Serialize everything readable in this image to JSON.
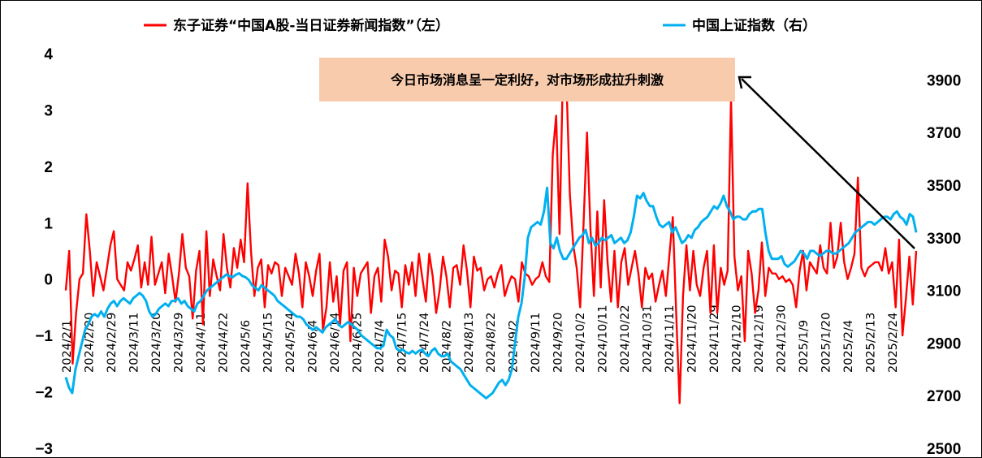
{
  "chart_data": {
    "type": "line",
    "x_tick_labels": [
      "2024/2/1",
      "2024/2/20",
      "2024/2/29",
      "2024/3/11",
      "2024/3/20",
      "2024/3/29",
      "2024/4/11",
      "2024/4/22",
      "2024/5/6",
      "2024/5/15",
      "2024/5/24",
      "2024/6/4",
      "2024/6/14",
      "2024/6/25",
      "2024/7/4",
      "2024/7/15",
      "2024/7/24",
      "2024/8/2",
      "2024/8/13",
      "2024/8/22",
      "2024/9/2",
      "2024/9/11",
      "2024/9/20",
      "2024/10/2",
      "2024/10/11",
      "2024/10/22",
      "2024/10/31",
      "2024/11/11",
      "2024/11/20",
      "2024/11/29",
      "2024/12/10",
      "2024/12/19",
      "2024/12/30",
      "2025/1/9",
      "2025/1/20",
      "2025/2/4",
      "2025/2/13",
      "2025/2/24"
    ],
    "y_left": {
      "ticks": [
        "4",
        "3",
        "2",
        "1",
        "0",
        "−1",
        "−2",
        "−3"
      ],
      "lim": [
        -3,
        4
      ]
    },
    "y_right": {
      "ticks": [
        "3900",
        "3700",
        "3500",
        "3300",
        "3100",
        "2900",
        "2700",
        "2500"
      ],
      "lim": [
        2500,
        4000
      ]
    },
    "series": [
      {
        "name": "东子证券“中国A股-当日证券新闻指数”（左）",
        "axis": "left",
        "color": "#ff0000",
        "values": [
          -0.2,
          0.5,
          -1.5,
          -0.6,
          0.0,
          0.1,
          1.15,
          0.5,
          -0.3,
          0.3,
          0.05,
          -0.2,
          0.2,
          0.6,
          0.85,
          0.0,
          -0.1,
          -0.2,
          0.3,
          0.15,
          0.35,
          0.6,
          -0.15,
          0.3,
          -0.1,
          0.75,
          -0.1,
          0.1,
          0.3,
          -0.25,
          0.45,
          0.05,
          -0.4,
          0.1,
          0.8,
          0.2,
          0.05,
          -0.7,
          0.15,
          0.5,
          -0.8,
          0.85,
          -0.3,
          0.35,
          0.05,
          -0.2,
          0.8,
          0.2,
          -0.15,
          0.55,
          0.2,
          0.7,
          0.3,
          1.7,
          0.5,
          -0.3,
          0.2,
          0.35,
          -0.5,
          0.25,
          0.1,
          0.3,
          0.25,
          -0.3,
          0.2,
          0.05,
          -0.1,
          0.45,
          0.1,
          -0.5,
          0.3,
          0.05,
          -0.3,
          0.15,
          0.45,
          -0.9,
          -0.5,
          0.3,
          -0.4,
          0.05,
          -0.8,
          0.15,
          0.3,
          -1.1,
          0.2,
          -0.3,
          0.1,
          0.2,
          0.3,
          -0.6,
          0.05,
          0.2,
          -0.4,
          0.7,
          0.4,
          -0.2,
          0.15,
          0.1,
          -0.5,
          0.25,
          -0.1,
          0.3,
          -0.3,
          0.45,
          0.0,
          -0.4,
          0.45,
          0.05,
          -0.6,
          -0.2,
          0.4,
          0.05,
          -0.5,
          0.2,
          0.25,
          -0.1,
          0.6,
          0.15,
          -0.5,
          0.4,
          0.15,
          0.2,
          -0.2,
          0.0,
          0.05,
          -0.15,
          0.1,
          0.25,
          -0.3,
          -0.1,
          0.05,
          0.0,
          -0.4,
          0.3,
          0.1,
          0.05,
          -0.1,
          0.0,
          0.05,
          0.3,
          0.05,
          -0.05,
          2.2,
          2.9,
          0.8,
          3.8,
          3.5,
          1.5,
          0.6,
          0.2,
          -0.5,
          1.0,
          2.6,
          0.9,
          -0.3,
          1.2,
          -0.15,
          1.4,
          0.3,
          -0.4,
          0.5,
          -0.5,
          0.3,
          0.55,
          -0.1,
          0.2,
          0.5,
          0.1,
          -0.5,
          0.2,
          0.0,
          0.1,
          -0.4,
          -0.1,
          0.15,
          -0.3,
          0.4,
          1.1,
          -0.6,
          -2.2,
          -0.3,
          0.6,
          -0.2,
          0.5,
          -0.1,
          -0.3,
          0.2,
          0.5,
          -0.6,
          0.6,
          -0.6,
          0.2,
          -0.1,
          0.15,
          3.2,
          0.4,
          -0.2,
          0.05,
          -1.1,
          0.5,
          0.1,
          -0.6,
          -0.2,
          0.65,
          -0.3,
          0.2,
          0.1,
          0.1,
          0.0,
          0.05,
          -0.05,
          0.0,
          -0.1,
          -0.5,
          0.15,
          0.5,
          -0.2,
          0.3,
          0.2,
          0.1,
          0.6,
          0.2,
          0.1,
          1.0,
          0.2,
          0.4,
          1.0,
          0.3,
          0.0,
          0.2,
          0.45,
          1.8,
          0.2,
          0.05,
          0.2,
          0.25,
          0.3,
          0.3,
          0.15,
          0.55,
          0.1,
          0.3,
          -0.5,
          0.7,
          -1.0,
          -0.35,
          0.4,
          -0.45,
          0.5
        ]
      },
      {
        "name": "中国上证指数（右）",
        "axis": "right",
        "color": "#00b0f0",
        "values": [
          2770,
          2730,
          2710,
          2800,
          2850,
          2900,
          2950,
          2970,
          3000,
          3010,
          3000,
          3020,
          3000,
          3030,
          3050,
          3060,
          3040,
          3060,
          3070,
          3060,
          3050,
          3070,
          3080,
          3090,
          3080,
          3060,
          3020,
          3000,
          3010,
          3030,
          3040,
          3050,
          3040,
          3060,
          3060,
          3070,
          3050,
          3060,
          3040,
          3030,
          3020,
          3050,
          3060,
          3080,
          3100,
          3110,
          3120,
          3130,
          3140,
          3150,
          3160,
          3155,
          3150,
          3160,
          3165,
          3155,
          3150,
          3140,
          3120,
          3110,
          3100,
          3120,
          3110,
          3100,
          3090,
          3080,
          3060,
          3050,
          3040,
          3030,
          3020,
          3010,
          3000,
          3000,
          2990,
          2970,
          2960,
          2950,
          2960,
          2950,
          2940,
          2960,
          2970,
          2980,
          2990,
          2970,
          2960,
          2970,
          2980,
          2970,
          2960,
          2950,
          2930,
          2920,
          2910,
          2900,
          2890,
          2880,
          2880,
          2890,
          2950,
          2930,
          2920,
          2880,
          2870,
          2875,
          2865,
          2860,
          2870,
          2860,
          2870,
          2875,
          2860,
          2850,
          2870,
          2880,
          2860,
          2850,
          2850,
          2860,
          2830,
          2820,
          2810,
          2800,
          2780,
          2760,
          2740,
          2730,
          2720,
          2710,
          2700,
          2690,
          2700,
          2710,
          2730,
          2750,
          2760,
          2740,
          2760,
          2800,
          2900,
          3000,
          3050,
          3150,
          3300,
          3340,
          3350,
          3360,
          3350,
          3400,
          3490,
          3280,
          3260,
          3300,
          3250,
          3220,
          3220,
          3240,
          3260,
          3280,
          3300,
          3310,
          3330,
          3280,
          3300,
          3270,
          3280,
          3300,
          3290,
          3300,
          3310,
          3280,
          3290,
          3300,
          3280,
          3290,
          3320,
          3380,
          3460,
          3450,
          3470,
          3440,
          3420,
          3420,
          3380,
          3350,
          3340,
          3350,
          3360,
          3320,
          3340,
          3310,
          3280,
          3290,
          3310,
          3300,
          3330,
          3340,
          3360,
          3370,
          3380,
          3400,
          3420,
          3410,
          3430,
          3460,
          3420,
          3400,
          3370,
          3380,
          3380,
          3370,
          3370,
          3390,
          3400,
          3400,
          3410,
          3410,
          3320,
          3250,
          3220,
          3220,
          3220,
          3230,
          3200,
          3190,
          3200,
          3210,
          3230,
          3250,
          3240,
          3220,
          3250,
          3250,
          3240,
          3230,
          3240,
          3250,
          3250,
          3240,
          3240,
          3250,
          3260,
          3270,
          3280,
          3300,
          3320,
          3330,
          3340,
          3350,
          3360,
          3360,
          3350,
          3360,
          3370,
          3380,
          3380,
          3370,
          3390,
          3400,
          3380,
          3370,
          3350,
          3390,
          3380,
          3320
        ]
      }
    ],
    "annotation": "今日市场消息呈一定利好，对市场形成拉升刺激",
    "legend_position": "top"
  }
}
